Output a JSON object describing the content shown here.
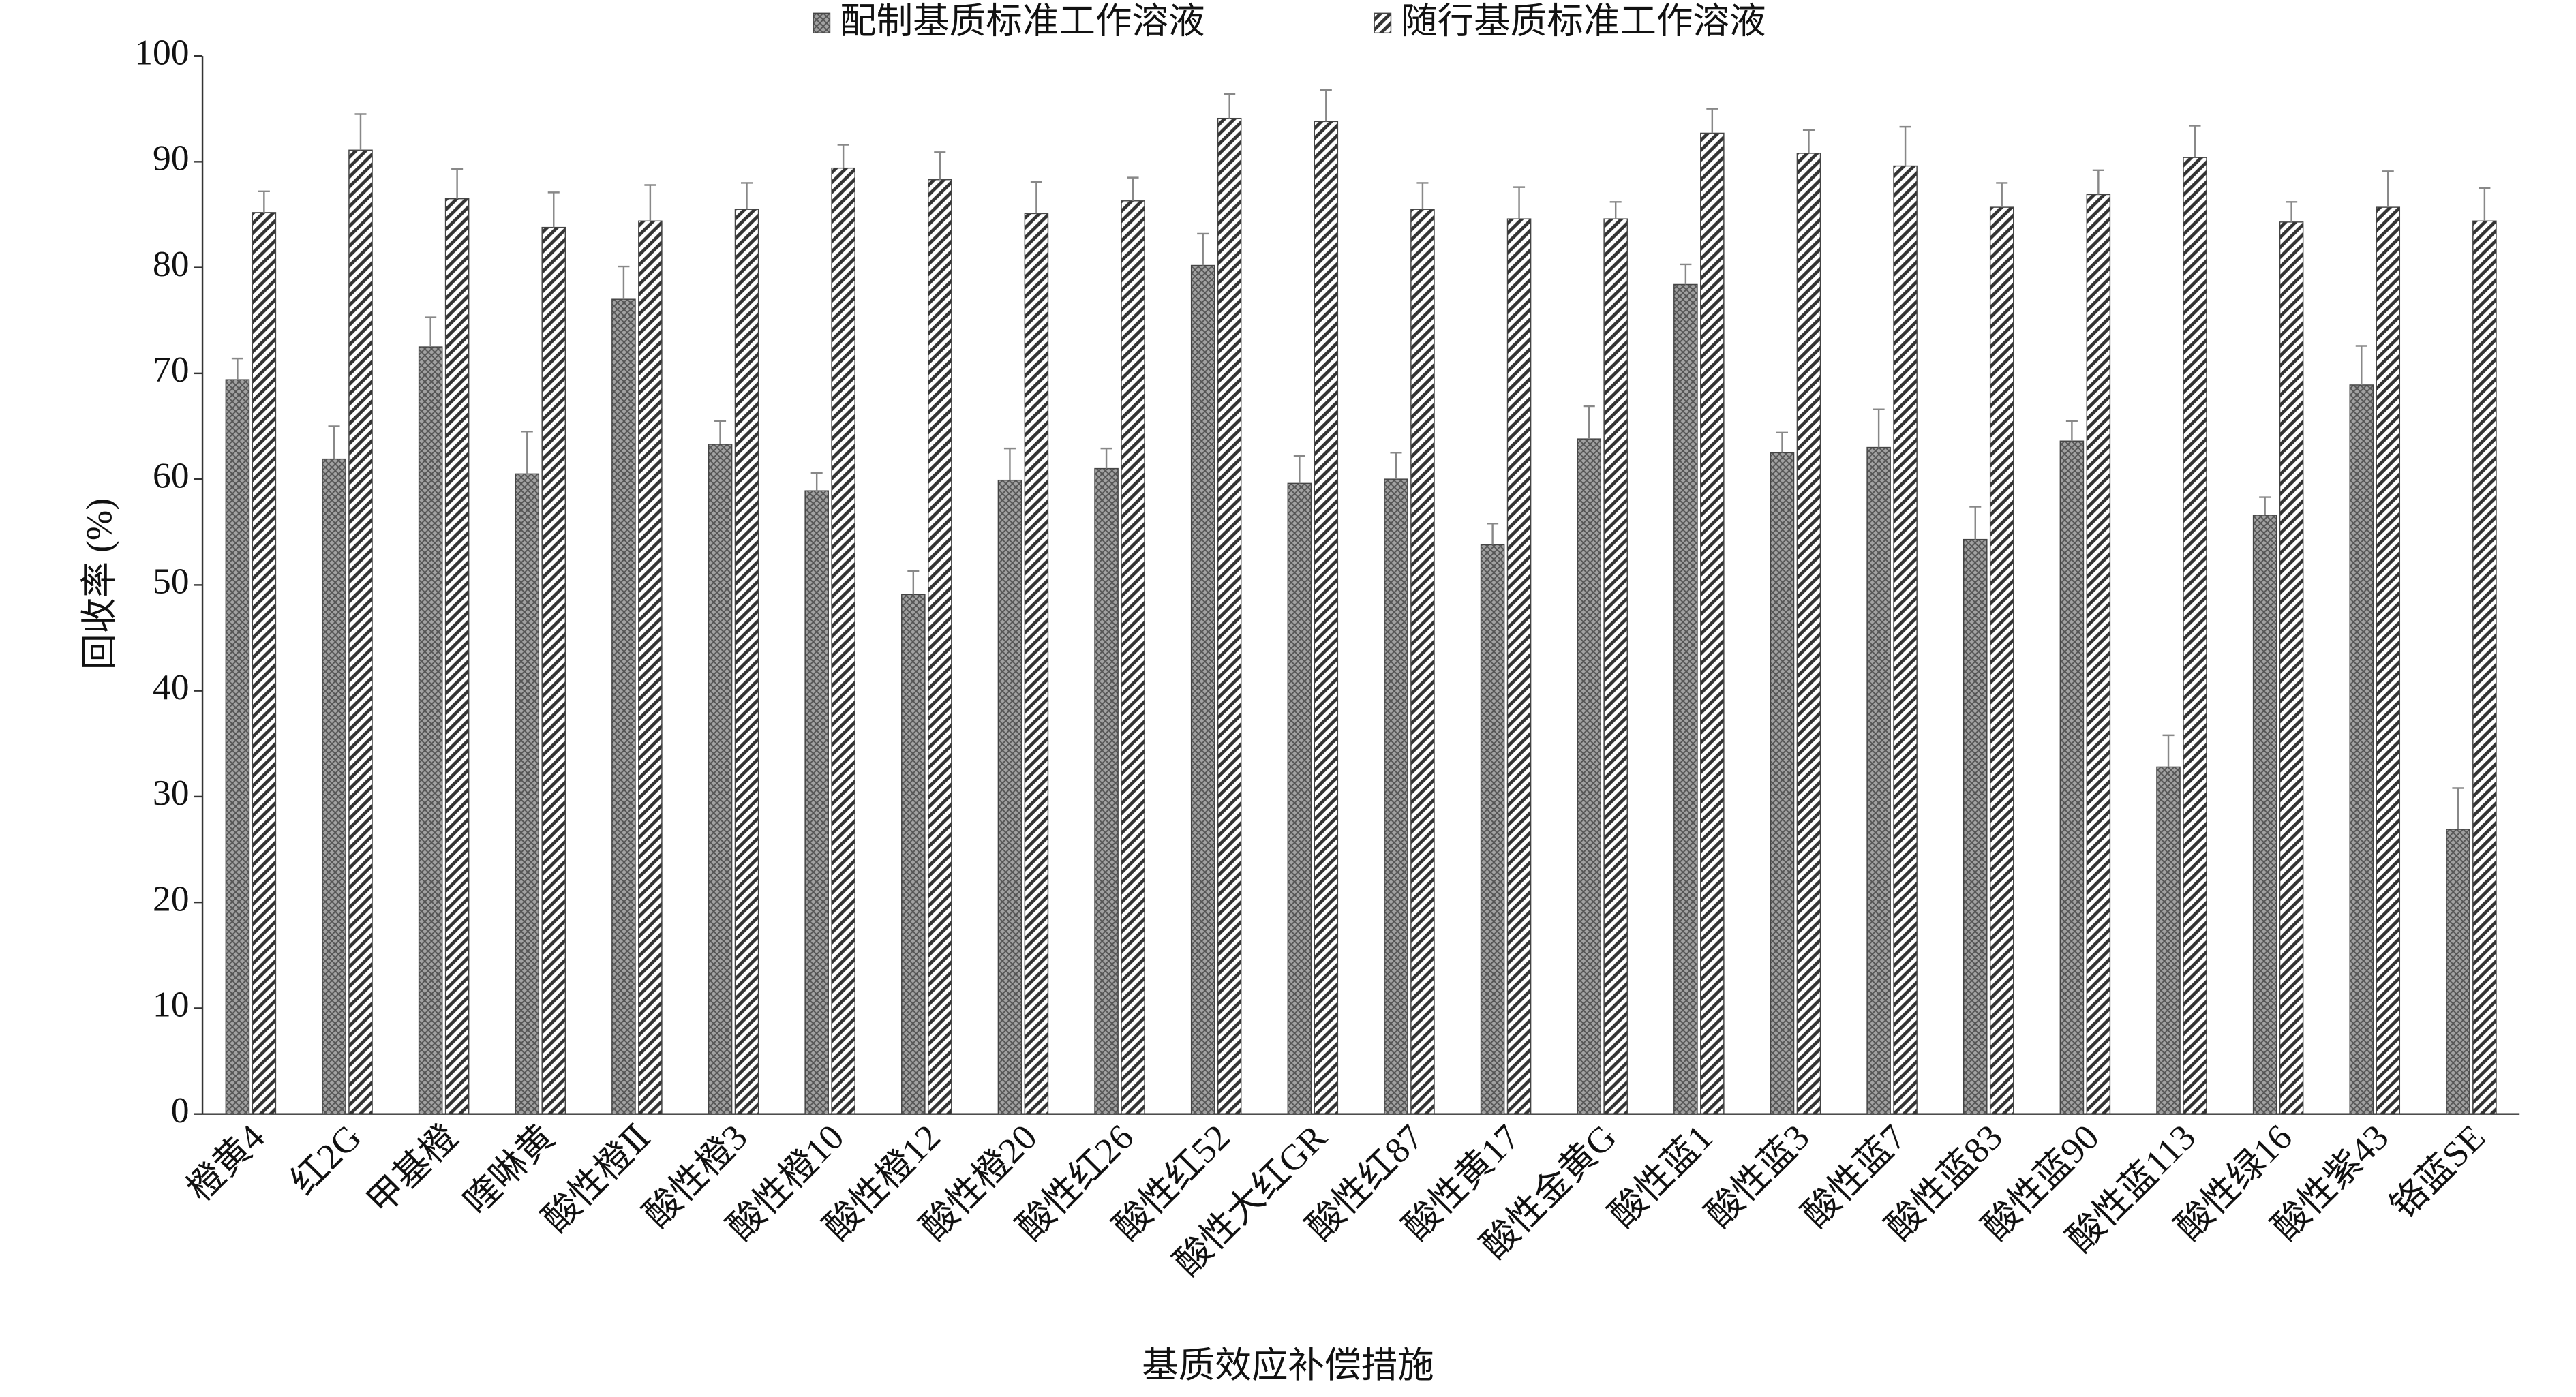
{
  "chart_data": {
    "type": "bar",
    "x_label": "基质效应补偿措施",
    "y_label": "回收率 (%)",
    "categories": [
      "橙黄4",
      "红2G",
      "甲基橙",
      "喹啉黄",
      "酸性橙Ⅱ",
      "酸性橙3",
      "酸性橙10",
      "酸性橙12",
      "酸性橙20",
      "酸性红26",
      "酸性红52",
      "酸性大红GR",
      "酸性红87",
      "酸性黄17",
      "酸性金黄G",
      "酸性蓝1",
      "酸性蓝3",
      "酸性蓝7",
      "酸性蓝83",
      "酸性蓝90",
      "酸性蓝113",
      "酸性绿16",
      "酸性紫43",
      "铬蓝SE"
    ],
    "series": [
      {
        "name": "配制基质标准工作溶液",
        "color": "#555555",
        "values": [
          69.4,
          61.9,
          72.5,
          60.5,
          77.0,
          63.3,
          58.9,
          49.1,
          59.9,
          61.0,
          80.2,
          59.6,
          60.0,
          53.8,
          63.8,
          78.4,
          62.5,
          63.0,
          54.3,
          63.6,
          32.8,
          56.6,
          68.9,
          26.9
        ],
        "errors": [
          2.0,
          3.1,
          2.8,
          4.0,
          3.1,
          2.2,
          1.7,
          2.2,
          3.0,
          1.9,
          3.0,
          2.6,
          2.5,
          2.0,
          3.1,
          1.9,
          1.9,
          3.6,
          3.1,
          1.9,
          3.0,
          1.7,
          3.7,
          3.9
        ]
      },
      {
        "name": "随行基质标准工作溶液",
        "color": "#333333",
        "values": [
          85.2,
          91.1,
          86.5,
          83.8,
          84.4,
          85.5,
          89.4,
          88.3,
          85.1,
          86.3,
          94.1,
          93.8,
          85.5,
          84.6,
          84.6,
          92.7,
          90.8,
          89.6,
          85.7,
          86.9,
          90.4,
          84.3,
          85.7,
          84.4
        ],
        "errors": [
          2.0,
          3.4,
          2.8,
          3.3,
          3.4,
          2.5,
          2.2,
          2.6,
          3.0,
          2.2,
          2.3,
          3.0,
          2.5,
          3.0,
          1.6,
          2.3,
          2.2,
          3.7,
          2.3,
          2.3,
          3.0,
          1.9,
          3.4,
          3.1
        ]
      }
    ],
    "ylim": [
      0,
      100
    ],
    "yticks": [
      0,
      10,
      20,
      30,
      40,
      50,
      60,
      70,
      80,
      90,
      100
    ],
    "grid": false,
    "legend": "top"
  }
}
